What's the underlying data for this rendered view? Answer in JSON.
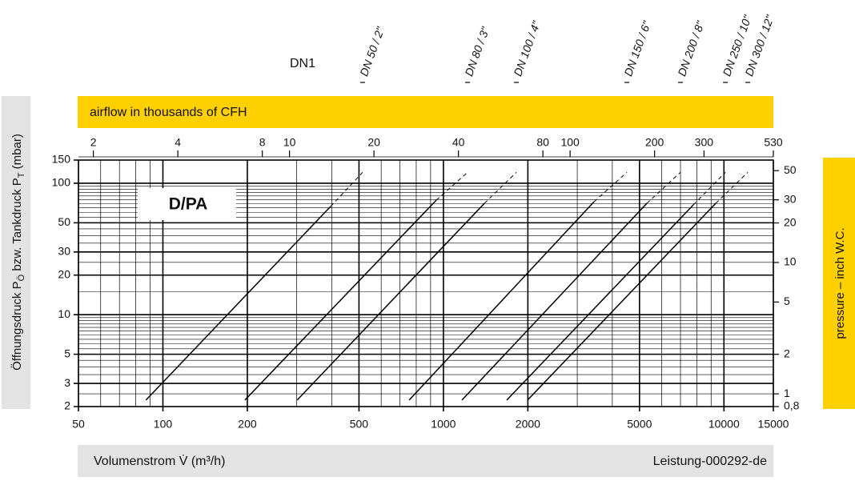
{
  "chart_data": {
    "type": "line",
    "title": "D/PA",
    "header": "DN1",
    "x_label": "Volumenstrom V̇ (m³/h)",
    "footer": "Leistung-000292-de",
    "x2_label": "airflow in thousands of CFH",
    "y_label": [
      "Öffnungsdruck P",
      "Ö",
      " bzw. Tankdruck P",
      "T",
      " (mbar)"
    ],
    "y2_label": "pressure – inch W.C.",
    "log_x": true,
    "log_y": true,
    "grid": true,
    "color": "#000000",
    "xlim": [
      50,
      15000
    ],
    "xticks": [
      50,
      100,
      200,
      500,
      1000,
      2000,
      5000,
      10000,
      15000
    ],
    "x2lim": [
      1.77,
      530
    ],
    "x2ticks": [
      2,
      4,
      8,
      10,
      20,
      40,
      80,
      100,
      200,
      300,
      530
    ],
    "ylim": [
      2,
      150
    ],
    "yticks": [
      2,
      3,
      5,
      10,
      20,
      30,
      50,
      100,
      150
    ],
    "y2lim": [
      0.8,
      60.2
    ],
    "y2ticks": [
      {
        "value": 0.8,
        "label": "0,8"
      },
      1,
      2,
      5,
      10,
      20,
      30,
      50
    ],
    "series": [
      {
        "name": "DN 50 / 2\"",
        "x": [
          87,
          396
        ],
        "values": [
          2.24,
          66.5
        ],
        "dashed_x": [
          396,
          515
        ],
        "dashed_values": [
          66.5,
          121
        ]
      },
      {
        "name": "DN 80 / 3\"",
        "x": [
          196,
          943
        ],
        "values": [
          2.24,
          74.3
        ],
        "dashed_x": [
          943,
          1219
        ],
        "dashed_values": [
          74.3,
          121
        ]
      },
      {
        "name": "DN 100 / 4\"",
        "x": [
          301,
          1400
        ],
        "values": [
          2.24,
          70.3
        ],
        "dashed_x": [
          1400,
          1820
        ],
        "dashed_values": [
          70.3,
          121
        ]
      },
      {
        "name": "DN 150 / 6\"",
        "x": [
          755,
          3443
        ],
        "values": [
          2.24,
          72.3
        ],
        "dashed_x": [
          3443,
          4508
        ],
        "dashed_values": [
          72.3,
          121
        ]
      },
      {
        "name": "DN 200 / 8\"",
        "x": [
          1164,
          5311
        ],
        "values": [
          2.24,
          70.3
        ],
        "dashed_x": [
          5311,
          6998
        ],
        "dashed_values": [
          70.3,
          121
        ]
      },
      {
        "name": "DN 250 / 10\"",
        "x": [
          1682,
          7776
        ],
        "values": [
          2.24,
          68.4
        ],
        "dashed_x": [
          7776,
          10120
        ],
        "dashed_values": [
          68.4,
          121
        ]
      },
      {
        "name": "DN 300 / 12\"",
        "x": [
          1995,
          9350
        ],
        "values": [
          2.24,
          70.3
        ],
        "dashed_x": [
          9350,
          12160
        ],
        "dashed_values": [
          70.3,
          121
        ]
      }
    ]
  }
}
